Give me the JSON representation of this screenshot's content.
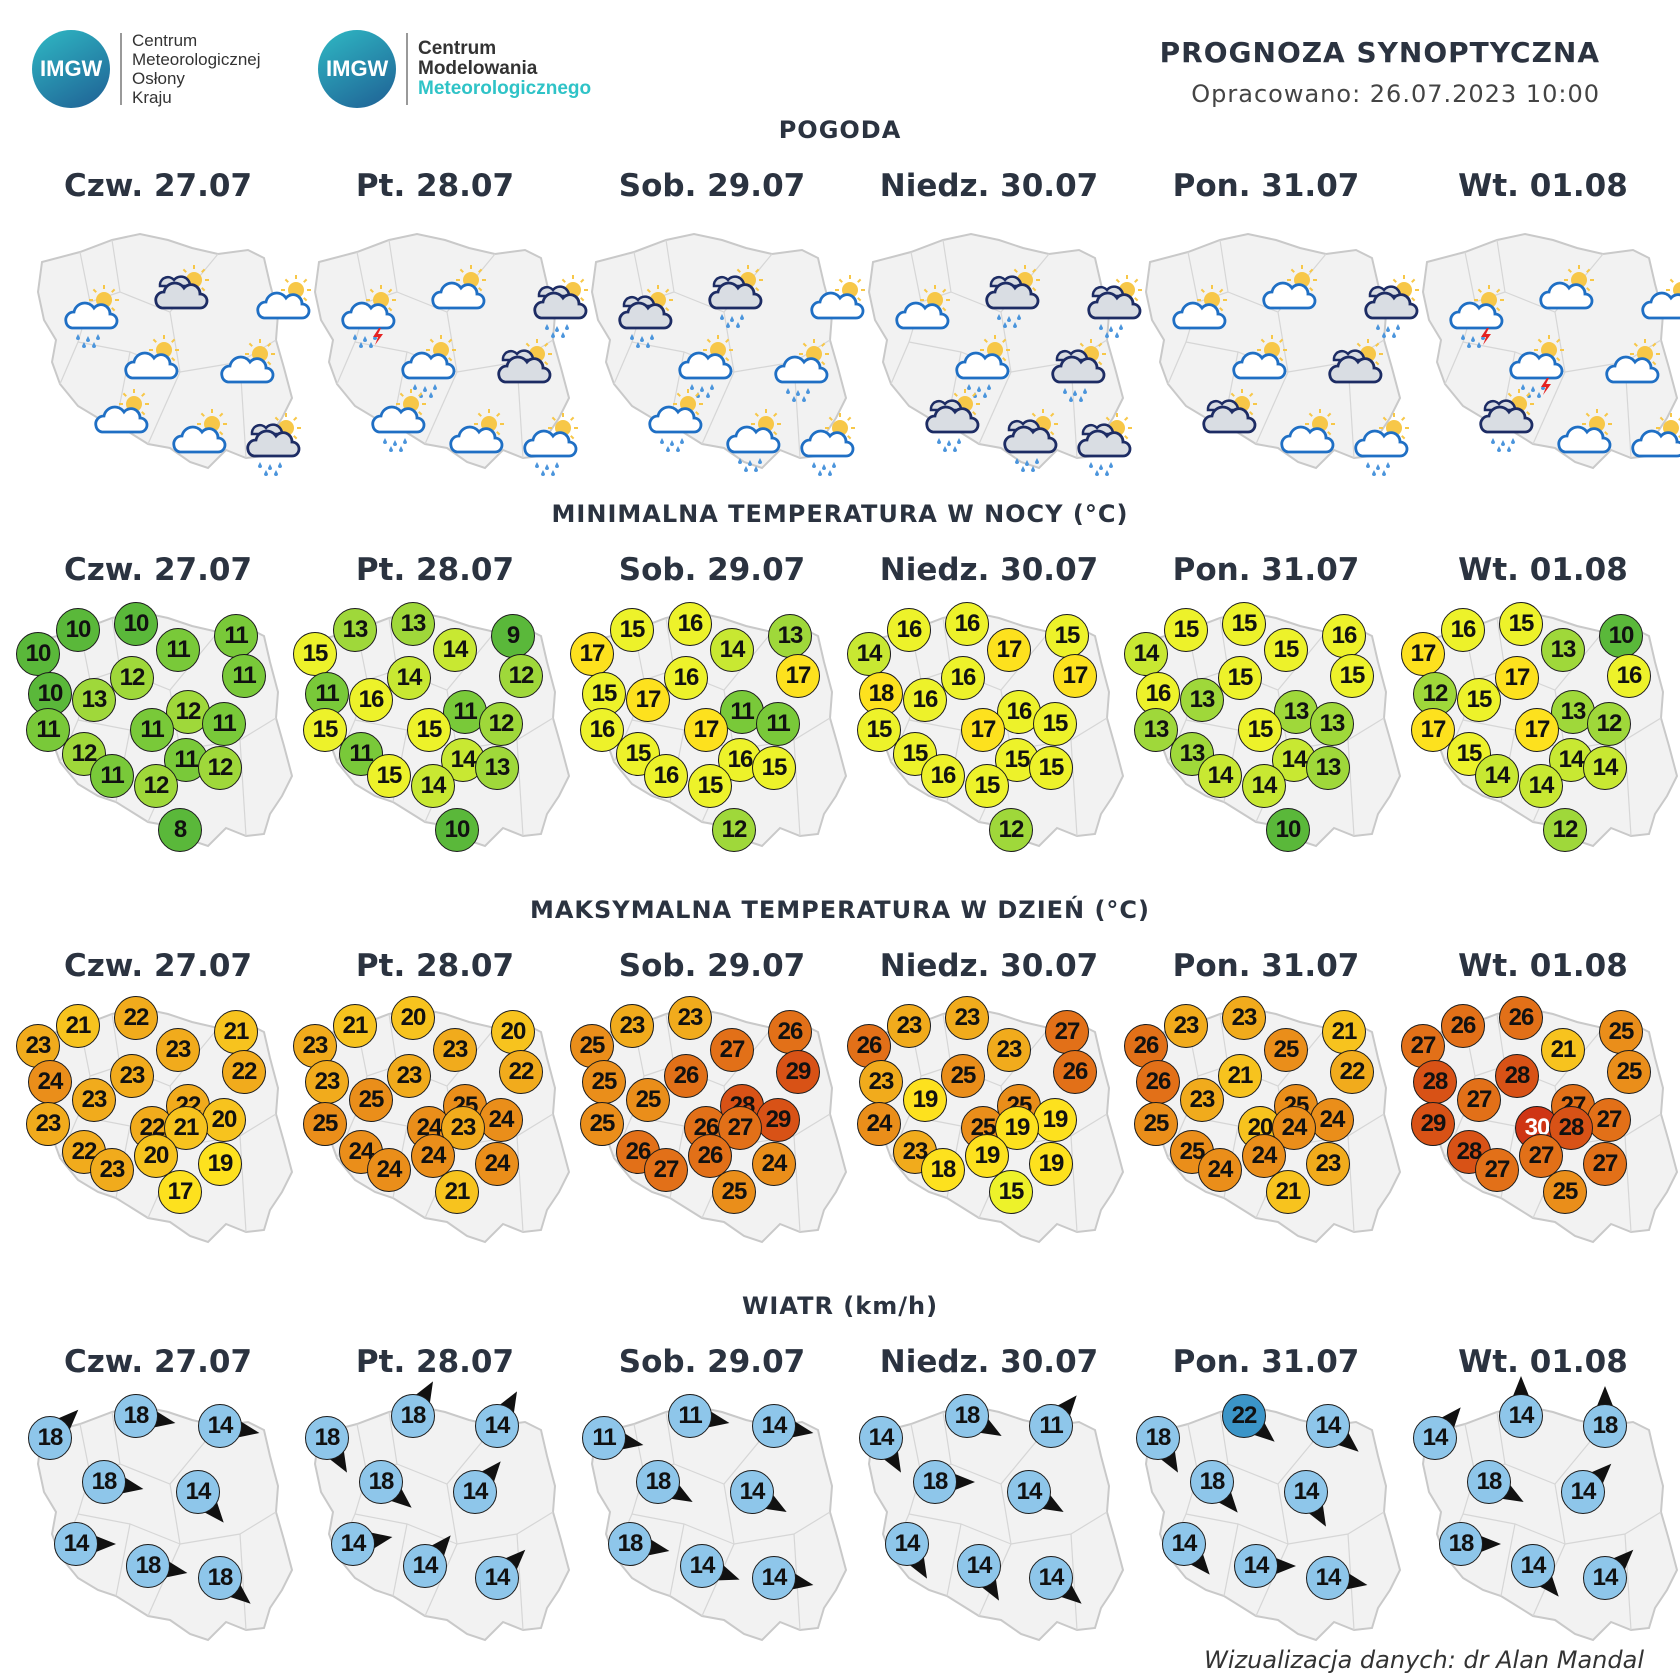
{
  "header": {
    "logo1": {
      "badge": "IMGW",
      "lines": [
        "Centrum",
        "Meteorologicznej",
        "Osłony",
        "Kraju"
      ]
    },
    "logo2": {
      "badge": "IMGW",
      "lines": [
        "Centrum",
        "Modelowania",
        "Meteorologicznego"
      ]
    },
    "title": "PROGNOZA SYNOPTYCZNA",
    "subtitle": "Opracowano: 26.07.2023 10:00"
  },
  "days": [
    "Czw. 27.07",
    "Pt. 28.07",
    "Sob. 29.07",
    "Niedz. 30.07",
    "Pon. 31.07",
    "Wt. 01.08"
  ],
  "sections": {
    "weather": "POGODA",
    "tmin": "MINIMALNA TEMPERATURA W NOCY (°C)",
    "tmax": "MAKSYMALNA TEMPERATURA W DZIEŃ (°C)",
    "wind": "WIATR (km/h)"
  },
  "weather_icons": [
    [
      "rain-cloud-sun",
      "dark-cloud-sun",
      "cloud-sun",
      "cloud-sun",
      "cloud-sun",
      "cloud-sun",
      "cloud-sun",
      "dark-rain-cloud-sun"
    ],
    [
      "storm-cloud-sun",
      "cloud-sun",
      "dark-rain-cloud-sun",
      "rain-cloud-sun",
      "dark-cloud-sun",
      "rain-cloud-sun",
      "cloud-sun",
      "rain-cloud-sun"
    ],
    [
      "dark-rain-cloud-sun",
      "dark-rain-cloud-sun",
      "cloud-sun",
      "rain-cloud-sun",
      "rain-cloud-sun",
      "rain-cloud-sun",
      "rain-cloud-sun",
      "rain-cloud-sun"
    ],
    [
      "cloud-sun",
      "dark-rain-cloud-sun",
      "dark-rain-cloud-sun",
      "rain-cloud-sun",
      "dark-rain-cloud-sun",
      "dark-rain-cloud-sun",
      "dark-rain-cloud-sun",
      "dark-rain-cloud-sun"
    ],
    [
      "cloud-sun",
      "cloud-sun",
      "dark-rain-cloud-sun",
      "cloud-sun",
      "dark-cloud-sun",
      "dark-cloud-sun",
      "cloud-sun",
      "rain-cloud-sun"
    ],
    [
      "storm-cloud-sun",
      "cloud-sun",
      "cloud-sun",
      "storm-cloud-sun",
      "cloud-sun",
      "dark-rain-cloud-sun",
      "cloud-sun",
      "cloud-sun"
    ]
  ],
  "tmin": [
    [
      10,
      10,
      10,
      11,
      11,
      11,
      10,
      12,
      12,
      11,
      13,
      11,
      11,
      12,
      11,
      11,
      12,
      12,
      8
    ],
    [
      15,
      13,
      13,
      9,
      14,
      12,
      11,
      14,
      11,
      15,
      16,
      15,
      12,
      11,
      15,
      14,
      14,
      13,
      10
    ],
    [
      17,
      15,
      16,
      13,
      14,
      17,
      15,
      16,
      11,
      16,
      17,
      17,
      11,
      15,
      16,
      16,
      15,
      15,
      12
    ],
    [
      14,
      16,
      16,
      15,
      17,
      17,
      18,
      16,
      16,
      15,
      16,
      17,
      15,
      15,
      16,
      15,
      15,
      15,
      12
    ],
    [
      14,
      15,
      15,
      16,
      15,
      15,
      16,
      15,
      13,
      13,
      13,
      15,
      13,
      13,
      14,
      14,
      14,
      13,
      10
    ],
    [
      17,
      16,
      15,
      10,
      13,
      16,
      12,
      17,
      13,
      17,
      15,
      17,
      12,
      15,
      14,
      14,
      14,
      14,
      12
    ]
  ],
  "tmax": [
    [
      23,
      21,
      22,
      21,
      23,
      22,
      24,
      23,
      22,
      23,
      23,
      22,
      20,
      22,
      23,
      21,
      20,
      19,
      17
    ],
    [
      23,
      21,
      20,
      20,
      23,
      22,
      23,
      23,
      25,
      25,
      25,
      24,
      24,
      24,
      24,
      23,
      24,
      24,
      21
    ],
    [
      25,
      23,
      23,
      26,
      27,
      29,
      25,
      26,
      28,
      25,
      25,
      26,
      29,
      26,
      27,
      27,
      26,
      24,
      25
    ],
    [
      26,
      23,
      23,
      27,
      23,
      26,
      23,
      25,
      25,
      24,
      19,
      25,
      19,
      23,
      18,
      19,
      19,
      19,
      15
    ],
    [
      26,
      23,
      23,
      21,
      25,
      22,
      26,
      21,
      25,
      25,
      23,
      20,
      24,
      25,
      24,
      24,
      24,
      23,
      21
    ],
    [
      27,
      26,
      26,
      25,
      21,
      25,
      28,
      28,
      27,
      29,
      27,
      30,
      27,
      28,
      27,
      28,
      27,
      27,
      25
    ]
  ],
  "wind": [
    [
      18,
      18,
      14,
      18,
      14,
      14,
      18,
      18
    ],
    [
      18,
      18,
      14,
      18,
      14,
      14,
      14,
      14
    ],
    [
      11,
      11,
      14,
      18,
      14,
      18,
      14,
      14
    ],
    [
      14,
      18,
      11,
      18,
      14,
      14,
      14,
      14
    ],
    [
      18,
      22,
      14,
      18,
      14,
      14,
      14,
      14
    ],
    [
      14,
      14,
      18,
      18,
      14,
      18,
      14,
      14
    ]
  ],
  "wind_dir": [
    [
      45,
      100,
      100,
      100,
      140,
      90,
      100,
      130
    ],
    [
      150,
      30,
      30,
      130,
      40,
      80,
      40,
      45
    ],
    [
      100,
      100,
      100,
      120,
      120,
      100,
      110,
      100
    ],
    [
      150,
      120,
      40,
      90,
      120,
      150,
      150,
      130
    ],
    [
      150,
      130,
      130,
      140,
      150,
      140,
      90,
      100
    ],
    [
      40,
      0,
      0,
      120,
      45,
      90,
      140,
      45
    ]
  ],
  "colors": {
    "temp_scale": [
      "#5ab83a",
      "#79c939",
      "#9fd83a",
      "#c8e832",
      "#edf22a",
      "#fde11e",
      "#f7c31e",
      "#f1ab1c",
      "#ea8e1a",
      "#e27018",
      "#d85216",
      "#cf3514"
    ],
    "wind_light": "#8ec6ea",
    "wind_dark": "#3b95c8"
  },
  "credit": "Wizualizacja danych: dr Alan Mandal"
}
